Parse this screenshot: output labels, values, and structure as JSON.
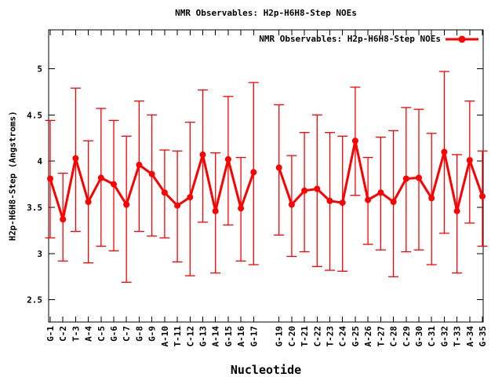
{
  "colors": {
    "series": "#ff0000",
    "axis": "#000000",
    "background": "#ffffff"
  },
  "chart_data": {
    "type": "line",
    "title": "NMR Observables: H2p-H6H8-Step NOEs",
    "legend": {
      "label": "NMR Observables: H2p-H6H8-Step NOEs",
      "position": "top-right-inside",
      "marker": "filled-circle-on-line"
    },
    "xlabel": "Nucleotide",
    "ylabel": "H2p-H6H8-Step (Angstroms)",
    "yticks": [
      2.5,
      3,
      3.5,
      4,
      4.5,
      5
    ],
    "ylim": [
      2.26,
      5.42
    ],
    "grid": false,
    "error_bars": true,
    "series_color": "#ff0000",
    "points": [
      {
        "label": "G-1",
        "value": 3.81,
        "lo": 3.17,
        "hi": 4.44
      },
      {
        "label": "C-2",
        "value": 3.37,
        "lo": 2.92,
        "hi": 3.87
      },
      {
        "label": "T-3",
        "value": 4.03,
        "lo": 3.24,
        "hi": 4.79
      },
      {
        "label": "A-4",
        "value": 3.56,
        "lo": 2.9,
        "hi": 4.22
      },
      {
        "label": "C-5",
        "value": 3.82,
        "lo": 3.08,
        "hi": 4.57
      },
      {
        "label": "G-6",
        "value": 3.75,
        "lo": 3.03,
        "hi": 4.44
      },
      {
        "label": "C-7",
        "value": 3.53,
        "lo": 2.69,
        "hi": 4.27
      },
      {
        "label": "G-8",
        "value": 3.96,
        "lo": 3.24,
        "hi": 4.65
      },
      {
        "label": "G-9",
        "value": 3.86,
        "lo": 3.19,
        "hi": 4.5
      },
      {
        "label": "A-10",
        "value": 3.66,
        "lo": 3.17,
        "hi": 4.12
      },
      {
        "label": "T-11",
        "value": 3.52,
        "lo": 2.91,
        "hi": 4.11
      },
      {
        "label": "C-12",
        "value": 3.61,
        "lo": 2.76,
        "hi": 4.42
      },
      {
        "label": "G-13",
        "value": 4.07,
        "lo": 3.34,
        "hi": 4.77
      },
      {
        "label": "A-14",
        "value": 3.46,
        "lo": 2.79,
        "hi": 4.09
      },
      {
        "label": "G-15",
        "value": 4.02,
        "lo": 3.31,
        "hi": 4.7
      },
      {
        "label": "A-16",
        "value": 3.49,
        "lo": 2.92,
        "hi": 4.04
      },
      {
        "label": "G-17",
        "value": 3.88,
        "lo": 2.88,
        "hi": 4.85
      },
      {
        "label": "",
        "value": null,
        "lo": null,
        "hi": null
      },
      {
        "label": "G-19",
        "value": 3.93,
        "lo": 3.2,
        "hi": 4.61
      },
      {
        "label": "C-20",
        "value": 3.53,
        "lo": 2.97,
        "hi": 4.06
      },
      {
        "label": "T-21",
        "value": 3.68,
        "lo": 3.02,
        "hi": 4.31
      },
      {
        "label": "C-22",
        "value": 3.7,
        "lo": 2.86,
        "hi": 4.5
      },
      {
        "label": "T-23",
        "value": 3.57,
        "lo": 2.82,
        "hi": 4.31
      },
      {
        "label": "C-24",
        "value": 3.55,
        "lo": 2.81,
        "hi": 4.27
      },
      {
        "label": "G-25",
        "value": 4.22,
        "lo": 3.63,
        "hi": 4.8
      },
      {
        "label": "A-26",
        "value": 3.58,
        "lo": 3.1,
        "hi": 4.04
      },
      {
        "label": "T-27",
        "value": 3.66,
        "lo": 3.04,
        "hi": 4.26
      },
      {
        "label": "C-28",
        "value": 3.56,
        "lo": 2.75,
        "hi": 4.33
      },
      {
        "label": "C-29",
        "value": 3.81,
        "lo": 3.02,
        "hi": 4.58
      },
      {
        "label": "G-30",
        "value": 3.82,
        "lo": 3.04,
        "hi": 4.56
      },
      {
        "label": "C-31",
        "value": 3.6,
        "lo": 2.88,
        "hi": 4.3
      },
      {
        "label": "G-32",
        "value": 4.1,
        "lo": 3.22,
        "hi": 4.97
      },
      {
        "label": "T-33",
        "value": 3.46,
        "lo": 2.79,
        "hi": 4.07
      },
      {
        "label": "A-34",
        "value": 4.01,
        "lo": 3.33,
        "hi": 4.65
      },
      {
        "label": "G-35",
        "value": 3.62,
        "lo": 3.08,
        "hi": 4.11
      }
    ]
  }
}
